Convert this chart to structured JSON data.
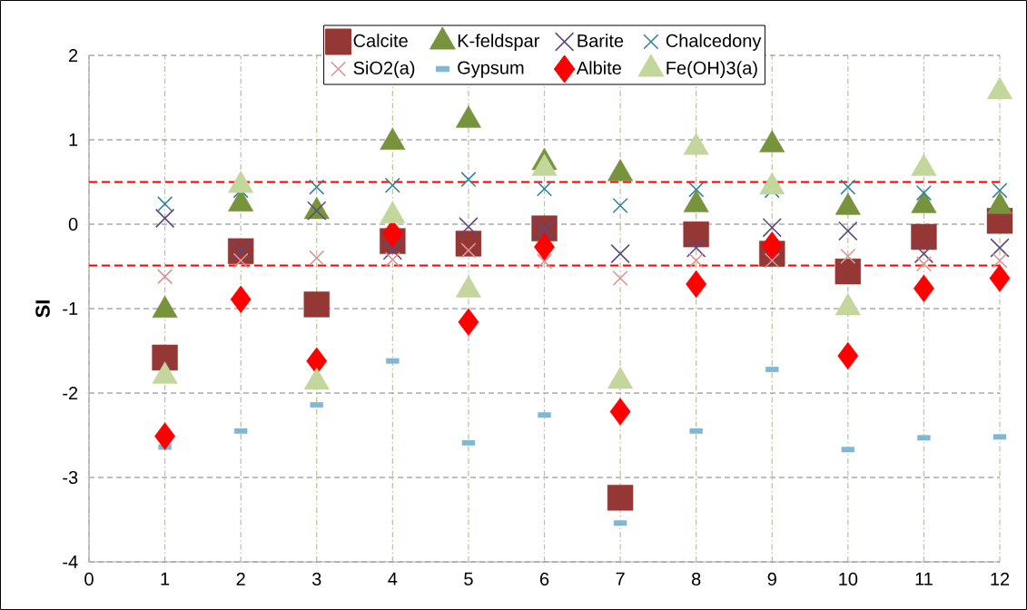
{
  "chart_data": {
    "type": "scatter",
    "ylabel": "SI",
    "x": [
      1,
      2,
      3,
      4,
      5,
      6,
      7,
      8,
      9,
      10,
      11,
      12
    ],
    "series": [
      {
        "name": "Calcite",
        "color": "#953735",
        "marker": "square",
        "values": [
          -1.58,
          -0.32,
          -0.95,
          -0.2,
          -0.23,
          -0.05,
          -3.24,
          -0.12,
          -0.35,
          -0.56,
          -0.15,
          0.04
        ]
      },
      {
        "name": "K-feldspar",
        "color": "#77933c",
        "marker": "triangle",
        "values": [
          -1.02,
          0.24,
          0.15,
          0.97,
          1.23,
          0.73,
          0.6,
          0.23,
          0.94,
          0.2,
          0.22,
          0.21
        ]
      },
      {
        "name": "Barite",
        "color": "#604a7b",
        "marker": "cross",
        "values": [
          0.07,
          -0.31,
          0.16,
          -0.31,
          -0.03,
          -0.06,
          -0.35,
          -0.28,
          -0.04,
          -0.08,
          -0.35,
          -0.28
        ]
      },
      {
        "name": "Chalcedony",
        "color": "#31859c",
        "marker": "cross",
        "values": [
          0.24,
          0.4,
          0.44,
          0.46,
          0.53,
          0.42,
          0.22,
          0.41,
          0.4,
          0.44,
          0.37,
          0.4
        ]
      },
      {
        "name": "SiO2(a)",
        "color": "#d99694",
        "marker": "cross",
        "values": [
          -0.62,
          -0.43,
          -0.4,
          -0.42,
          -0.31,
          -0.44,
          -0.64,
          -0.43,
          -0.43,
          -0.38,
          -0.47,
          -0.43
        ]
      },
      {
        "name": "Gypsum",
        "color": "#7fb8d4",
        "values": [
          -2.64,
          -2.45,
          -2.14,
          -1.62,
          -2.59,
          -2.26,
          -3.54,
          -2.45,
          -1.72,
          -2.67,
          -2.53,
          -2.52
        ]
      },
      {
        "name": "Albite",
        "color": "#ff0000",
        "marker": "diamond",
        "values": [
          -2.51,
          -0.89,
          -1.62,
          -0.11,
          -1.16,
          -0.27,
          -2.22,
          -0.71,
          -0.25,
          -1.56,
          -0.76,
          -0.64
        ]
      },
      {
        "name": "Fe(OH)3(a)",
        "color": "#c3d69b",
        "marker": "triangle",
        "values": [
          -1.8,
          0.46,
          -1.87,
          0.1,
          -0.78,
          0.66,
          -1.86,
          0.91,
          0.44,
          -0.99,
          0.66,
          1.57
        ]
      }
    ],
    "xlim": [
      0,
      12
    ],
    "ylim": [
      -4,
      2
    ],
    "xticks": [
      0,
      1,
      2,
      3,
      4,
      5,
      6,
      7,
      8,
      9,
      10,
      11,
      12
    ],
    "yticks": [
      -4,
      -3,
      -2,
      -1,
      0,
      1,
      2
    ],
    "grid": true,
    "legend": "top",
    "ref_lines": [
      {
        "axis": "y",
        "value": 0.5,
        "color": "#ff0000",
        "line_style": "dashed"
      },
      {
        "axis": "y",
        "value": -0.49,
        "color": "#ff0000",
        "line_style": "dashed"
      }
    ]
  }
}
